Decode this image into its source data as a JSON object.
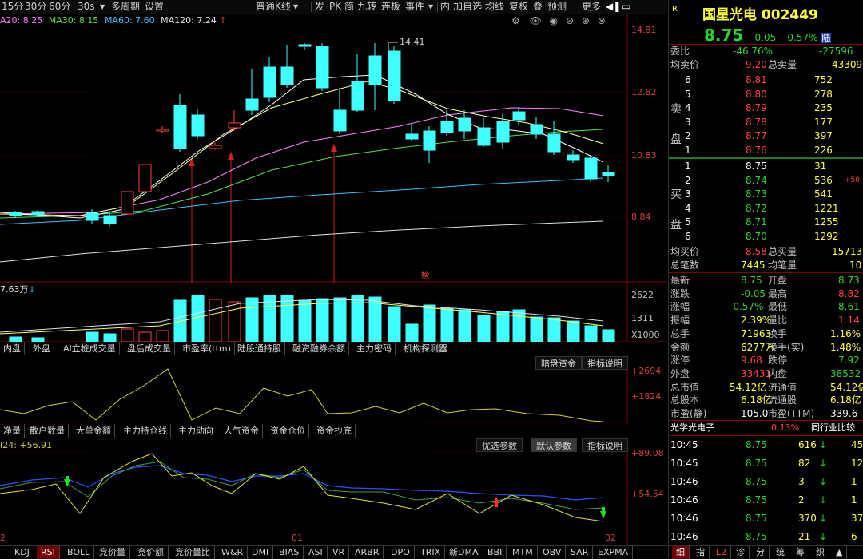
{
  "toolbar": {
    "items": [
      "15分",
      "30分",
      "60分",
      "30s",
      "多周期",
      "设置",
      "普通K线",
      "发",
      "PK",
      "简",
      "九转",
      "连板",
      "事件",
      "内",
      "加自选",
      "均线",
      "复权",
      "叠",
      "预测",
      "更多"
    ],
    "icons": [
      "dropdown-icon",
      "pin-icon"
    ]
  },
  "ma_legend": {
    "ma20": "A20: 8.25",
    "ma30": "MA30: 8.15",
    "ma60": "MA60: 7.60",
    "ma120": "MA120: 7.24"
  },
  "main_chart": {
    "y_labels": [
      "14.81",
      "12.82",
      "10.83",
      "8.84"
    ],
    "high_label": "14.41",
    "marker_text": "榜"
  },
  "volume": {
    "label": "7.63万",
    "y_labels": [
      "2622",
      "1311",
      "X1000"
    ]
  },
  "indicator_tabs": [
    "内盘",
    "外盘",
    "AI立桩成交量",
    "盘后成交量",
    "市盈率(ttm)",
    "陆股通持股",
    "融资融券余额",
    "主力密码",
    "机构探测器"
  ],
  "indicator_buttons": [
    "暗盘资金",
    "指标说明"
  ],
  "indicator_y": [
    "+2694",
    "+1824"
  ],
  "fund_tabs": [
    "净量",
    "散户数量",
    "大单金额",
    "主力持仓线",
    "主力动向",
    "人气资金",
    "资金仓位",
    "资金抄底"
  ],
  "rsi": {
    "label": "I24: +56.91",
    "buttons": [
      "优选参数",
      "默认参数",
      "指标说明"
    ],
    "y_labels": [
      "+89.08",
      "+54.54"
    ],
    "x_labels": [
      "2",
      "01",
      "02"
    ]
  },
  "bottom_tabs": [
    "KDJ",
    "RSI",
    "BOLL",
    "竞价量",
    "竞价额",
    "竞价量比",
    "W&R",
    "DMI",
    "BIAS",
    "ASI",
    "VR",
    "ARBR",
    "DPO",
    "TRIX",
    "新DMA",
    "BBI",
    "MTM",
    "OBV",
    "SAR",
    "EXPMA"
  ],
  "quote": {
    "badge": "R",
    "name": "国星光电 002449",
    "price": "8.75",
    "change": "-0.05",
    "pct": "-0.57%",
    "tag": "陆",
    "webi_label": "委比",
    "webi_val": "-46.76%",
    "webi_diff": "-27596",
    "avg_sell_label": "均卖价",
    "avg_sell_val": "9.20",
    "total_sell_label": "总卖量",
    "total_sell_val": "43309",
    "sell_label": "卖盘",
    "sells": [
      {
        "lvl": "6",
        "price": "8.81",
        "vol": "752"
      },
      {
        "lvl": "5",
        "price": "8.80",
        "vol": "278"
      },
      {
        "lvl": "4",
        "price": "8.79",
        "vol": "235"
      },
      {
        "lvl": "3",
        "price": "8.78",
        "vol": "177"
      },
      {
        "lvl": "2",
        "price": "8.77",
        "vol": "397"
      },
      {
        "lvl": "1",
        "price": "8.76",
        "vol": "226"
      }
    ],
    "buy_label": "买盘",
    "buys": [
      {
        "lvl": "1",
        "price": "8.75",
        "vol": "31",
        "extra": ""
      },
      {
        "lvl": "2",
        "price": "8.74",
        "vol": "536",
        "extra": "+50"
      },
      {
        "lvl": "3",
        "price": "8.73",
        "vol": "541",
        "extra": ""
      },
      {
        "lvl": "4",
        "price": "8.72",
        "vol": "1221",
        "extra": ""
      },
      {
        "lvl": "5",
        "price": "8.71",
        "vol": "1255",
        "extra": ""
      },
      {
        "lvl": "6",
        "price": "8.70",
        "vol": "1292",
        "extra": ""
      }
    ],
    "avg_buy_label": "均买价",
    "avg_buy_val": "8.58",
    "total_buy_label": "总买量",
    "total_buy_val": "15713",
    "total_deals_label": "总笔数",
    "total_deals_val": "7445",
    "avg_deal_label": "均笔量",
    "avg_deal_val": "10",
    "stats": [
      {
        "l1": "最新",
        "v1": "8.75",
        "c1": "green",
        "l2": "开盘",
        "v2": "8.73",
        "c2": "green"
      },
      {
        "l1": "涨跌",
        "v1": "-0.05",
        "c1": "green",
        "l2": "最高",
        "v2": "8.82",
        "c2": "red"
      },
      {
        "l1": "涨幅",
        "v1": "-0.57%",
        "c1": "green",
        "l2": "最低",
        "v2": "8.61",
        "c2": "green"
      },
      {
        "l1": "振幅",
        "v1": "2.39%",
        "c1": "yel",
        "l2": "量比",
        "v2": "1.14",
        "c2": "red"
      },
      {
        "l1": "总手",
        "v1": "71963",
        "c1": "yel",
        "l2": "换手",
        "v2": "1.16%",
        "c2": "yel"
      },
      {
        "l1": "金额",
        "v1": "6277万",
        "c1": "yel",
        "l2": "换手(实)",
        "v2": "1.48%",
        "c2": "yel"
      },
      {
        "l1": "涨停",
        "v1": "9.68",
        "c1": "red",
        "l2": "跌停",
        "v2": "7.92",
        "c2": "green"
      },
      {
        "l1": "外盘",
        "v1": "33431",
        "c1": "red",
        "l2": "内盘",
        "v2": "38532",
        "c2": "green"
      },
      {
        "l1": "总市值",
        "v1": "54.12亿",
        "c1": "yel",
        "l2": "流通值",
        "v2": "54.12亿",
        "c2": "yel"
      },
      {
        "l1": "总股本",
        "v1": "6.18亿",
        "c1": "yel",
        "l2": "流通股",
        "v2": "6.18亿",
        "c2": "yel"
      },
      {
        "l1": "市盈(静)",
        "v1": "105.0",
        "c1": "wht",
        "l2": "市盈(TTM)",
        "v2": "339.6",
        "c2": "wht"
      }
    ],
    "sector_name": "光学光电子",
    "sector_pct": "0.13%",
    "sector_btn": "同行业比较",
    "ticks": [
      {
        "time": "10:45",
        "price": "8.75",
        "vol": "616",
        "dir": "down",
        "num": "45"
      },
      {
        "time": "10:45",
        "price": "8.75",
        "vol": "82",
        "dir": "down",
        "num": "12"
      },
      {
        "time": "10:46",
        "price": "8.75",
        "vol": "3",
        "dir": "down",
        "num": "1"
      },
      {
        "time": "10:46",
        "price": "8.75",
        "vol": "2",
        "dir": "down",
        "num": "1"
      },
      {
        "time": "10:46",
        "price": "8.75",
        "vol": "370",
        "dir": "down",
        "num": "37"
      },
      {
        "time": "10:46",
        "price": "8.75",
        "vol": "21",
        "dir": "down",
        "num": "6"
      }
    ],
    "bottom_tabs": [
      "细",
      "指",
      "L2",
      "诊",
      "分",
      "统",
      "筹",
      "织",
      "▲"
    ]
  }
}
